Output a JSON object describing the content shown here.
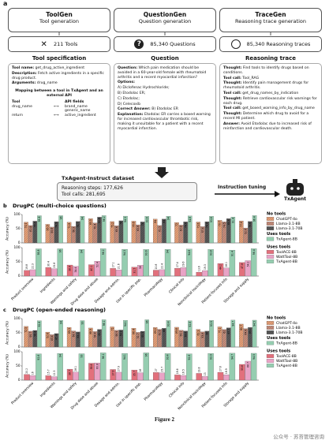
{
  "panel_a": {
    "label": "a",
    "toolgen": {
      "title": "ToolGen",
      "subtitle": "Tool generation",
      "count": "211 Tools",
      "section": "Tool specification",
      "lines": [
        {
          "key": "Tool name:",
          "text": "get_drug_active_ingredient"
        },
        {
          "key": "Description:",
          "text": "Fetch active ingredients in a specific drug product."
        },
        {
          "key": "Arguments:",
          "text": "drug_name"
        }
      ],
      "mapping_title": "Mapping between a tool in TxAgent and an external API",
      "mapping_header": [
        "Tool",
        "API fields"
      ],
      "mapping": [
        {
          "tool": "drug_name",
          "fields": [
            "brand_name",
            "generic_name"
          ]
        },
        {
          "tool": "return",
          "fields": [
            "active_ingredient"
          ]
        }
      ]
    },
    "questiongen": {
      "title": "QuestionGen",
      "subtitle": "Question generation",
      "count": "85,340 Questions",
      "section": "Question",
      "lines": [
        {
          "key": "Question:",
          "text": "Which pain medication should be avoided in a 60-year-old female with rheumatoid arthritis and a recent myocardial infarction?"
        },
        {
          "key": "Options:"
        },
        "A) Diclofenac Hydrochloride;",
        "B) Etodolac ER;",
        "C) Etodolac;",
        "D) Celecoxib",
        {
          "key": "Correct Answer:",
          "text": "B) Etodolac ER"
        },
        {
          "key": "Explanation:",
          "text": "Etodolac ER carries a boxed warning for increased cardiovascular thrombotic risk, making it unsuitable for a patient with a recent myocardial infarction."
        }
      ]
    },
    "tracegen": {
      "title": "TraceGen",
      "subtitle": "Reasoning trace generation",
      "count": "85,340 Reasoning traces",
      "section": "Reasoning trace",
      "lines": [
        {
          "key": "Thought:",
          "text": "Find tools to identify drugs based on conditions."
        },
        {
          "key": "Tool call:",
          "text": "Tool_RAG"
        },
        {
          "key": "Thought:",
          "text": "Identify pain management drugs for rheumatoid arthritis."
        },
        {
          "key": "Tool call:",
          "text": "get_drug_names_by_indication"
        },
        {
          "key": "Thought:",
          "text": "Retrieve cardiovascular risk warnings for each drug."
        },
        {
          "key": "Tool call:",
          "text": "get_boxed_warning_info_by_drug_name"
        },
        {
          "key": "Thought:",
          "text": "Determine which drug to avoid for a recent MI patient."
        },
        {
          "key": "Answer:",
          "text": "Avoid Etodolac due to increased risk of reinfarction and cardiovascular death."
        }
      ]
    },
    "dataset": {
      "title": "TxAgent-Instruct dataset",
      "steps": "Reasoning steps: 177,626",
      "calls": "Tool calls: 281,695"
    },
    "instruction_tuning": "Instruction tuning",
    "model": "TxAgent"
  },
  "chart_data": [
    {
      "type": "bar",
      "label": "b",
      "title": "DrugPC (multi-choice questions)",
      "ylabel": "Accuracy (%)",
      "ylim": [
        0,
        100
      ],
      "yticks": [
        0,
        50,
        100
      ],
      "grid": false,
      "categories": [
        "Product overview",
        "Ingredients",
        "Warnings and safety",
        "Drug dose and abuse",
        "Dosage and admin.",
        "Use in specific pop.",
        "Pharmacology",
        "Clinical info",
        "Nonclinical toxicology",
        "Patient-focused info",
        "Storage and supply"
      ],
      "groups": [
        {
          "sections": [
            {
              "legend_title": "No tools",
              "series": [
                {
                  "name": "ChatGPT-4o",
                  "color": "#e9a27a",
                  "hatch": true,
                  "values": [
                    73.3,
                    65.5,
                    72.8,
                    85.5,
                    75.2,
                    76.6,
                    84.0,
                    72.0,
                    73.6,
                    79.7,
                    77.6
                  ]
                },
                {
                  "name": "Llama-3.1-8B",
                  "color": "#c9907e",
                  "hatch": true,
                  "values": [
                    61.4,
                    55.8,
                    58.3,
                    70.4,
                    60.6,
                    63.8,
                    61.5,
                    62.9,
                    57.4,
                    74.5,
                    52.6
                  ]
                },
                {
                  "name": "Llama-3.1-70B",
                  "color": "#5a5a5a",
                  "hatch": true,
                  "values": [
                    76.6,
                    74.9,
                    75.7,
                    90.8,
                    78.0,
                    74.0,
                    84.0,
                    74.4,
                    74.8,
                    85.6,
                    75.6
                  ]
                }
              ]
            },
            {
              "legend_title": "Uses tools",
              "series": [
                {
                  "name": "TxAgent-8B",
                  "color": "#95cdb0",
                  "hatch": false,
                  "values": [
                    95.8,
                    96.0,
                    94.0,
                    96.2,
                    94.3,
                    93.6,
                    94.0,
                    94.8,
                    93.8,
                    91.4,
                    96.4
                  ]
                }
              ]
            }
          ]
        },
        {
          "sections": [
            {
              "legend_title": "Uses tools",
              "series": [
                {
                  "name": "ToolACE-8B",
                  "color": "#e2707c",
                  "hatch": false,
                  "values": [
                    19.8,
                    30.4,
                    38.8,
                    40.1,
                    27.1,
                    31.5,
                    20.8,
                    27.4,
                    13.6,
                    44.2,
                    47.8
                  ]
                },
                {
                  "name": "WattTool-8B",
                  "color": "#e9a3c6",
                  "hatch": false,
                  "values": [
                    22.3,
                    25.8,
                    34.4,
                    52.4,
                    21.6,
                    38.0,
                    22.4,
                    29.6,
                    19.3,
                    28.1,
                    54.2
                  ]
                },
                {
                  "name": "TxAgent-8B",
                  "color": "#95cdb0",
                  "hatch": false,
                  "values": [
                    95.8,
                    96.0,
                    94.0,
                    96.2,
                    94.3,
                    93.6,
                    94.0,
                    94.8,
                    93.8,
                    91.4,
                    96.4
                  ]
                }
              ]
            }
          ]
        }
      ]
    },
    {
      "type": "bar",
      "label": "c",
      "title": "DrugPC (open-ended reasoning)",
      "ylabel": "Accuracy (%)",
      "ylim": [
        0,
        100
      ],
      "yticks": [
        0,
        50,
        100
      ],
      "grid": false,
      "categories": [
        "Product overview",
        "Ingredients",
        "Warnings and safety",
        "Drug dose and abuse",
        "Dosage and admin.",
        "Use in specific pop.",
        "Pharmacology",
        "Clinical info",
        "Nonclinical toxicology",
        "Patient-focused info",
        "Storage and supply"
      ],
      "groups": [
        {
          "sections": [
            {
              "legend_title": "No tools",
              "series": [
                {
                  "name": "ChatGPT-4o",
                  "color": "#e9a27a",
                  "hatch": true,
                  "values": [
                    72.5,
                    52.6,
                    69.3,
                    66.9,
                    71.0,
                    66.4,
                    69.2,
                    69.6,
                    62.3,
                    71.1,
                    80.7
                  ]
                },
                {
                  "name": "Llama-3.1-8B",
                  "color": "#c9907e",
                  "hatch": true,
                  "values": [
                    55.7,
                    43.4,
                    56.7,
                    54.4,
                    58.9,
                    51.7,
                    62.5,
                    59.1,
                    53.6,
                    62.0,
                    64.8
                  ]
                },
                {
                  "name": "Llama-3.1-70B",
                  "color": "#5a5a5a",
                  "hatch": true,
                  "values": [
                    58.4,
                    47.4,
                    53.1,
                    62.2,
                    59.9,
                    55.5,
                    66.0,
                    56.6,
                    56.0,
                    67.7,
                    69.1
                  ]
                }
              ]
            },
            {
              "legend_title": "Uses tools",
              "series": [
                {
                  "name": "TxAgent-8B",
                  "color": "#95cdb0",
                  "hatch": false,
                  "values": [
                    92.6,
                    94.0,
                    93.0,
                    96.1,
                    94.1,
                    96.0,
                    93.4,
                    92.6,
                    93.9,
                    94.7,
                    94.5
                  ]
                }
              ]
            }
          ]
        },
        {
          "sections": [
            {
              "legend_title": "Uses tools",
              "series": [
                {
                  "name": "ToolACE-8B",
                  "color": "#e2707c",
                  "hatch": false,
                  "values": [
                    20.2,
                    15.7,
                    38.7,
                    59.6,
                    37.6,
                    35.7,
                    27.0,
                    18.6,
                    23.8,
                    27.6,
                    55.6
                  ]
                },
                {
                  "name": "WattTool-8B",
                  "color": "#e9a3c6",
                  "hatch": false,
                  "values": [
                    16.0,
                    12.3,
                    28.1,
                    60.8,
                    27.9,
                    26.0,
                    25.7,
                    16.5,
                    13.0,
                    18.9,
                    66.7
                  ]
                },
                {
                  "name": "TxAgent-8B",
                  "color": "#95cdb0",
                  "hatch": false,
                  "values": [
                    92.6,
                    94.0,
                    93.0,
                    96.1,
                    94.1,
                    96.0,
                    93.4,
                    92.6,
                    93.9,
                    94.7,
                    94.5
                  ]
                }
              ]
            }
          ]
        }
      ]
    }
  ],
  "caption": "Figure 2",
  "watermark": "公众号 · 苏苔管理咨询"
}
